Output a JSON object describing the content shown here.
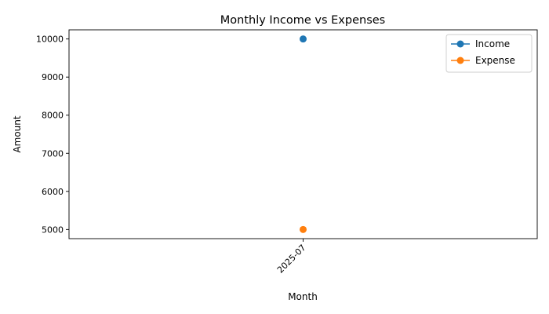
{
  "chart_data": {
    "type": "line",
    "title": "Monthly Income vs Expenses",
    "xlabel": "Month",
    "ylabel": "Amount",
    "categories": [
      "2025-07"
    ],
    "ylim": [
      4760,
      10240
    ],
    "yticks": [
      5000,
      6000,
      7000,
      8000,
      9000,
      10000
    ],
    "grid": false,
    "legend_position": "top-right",
    "series": [
      {
        "name": "Income",
        "values": [
          10000
        ],
        "color": "#1f77b4",
        "marker": "circle"
      },
      {
        "name": "Expense",
        "values": [
          5000
        ],
        "color": "#ff7f0e",
        "marker": "circle"
      }
    ]
  }
}
